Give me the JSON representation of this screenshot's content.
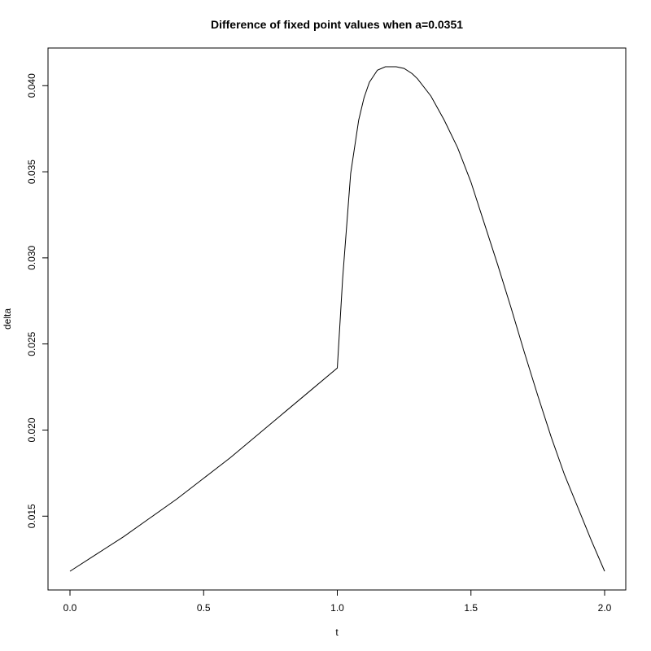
{
  "chart_data": {
    "type": "line",
    "title": "Difference of fixed point values when a=0.0351",
    "xlabel": "t",
    "ylabel": "delta",
    "xlim": [
      0,
      2
    ],
    "ylim": [
      0.0118,
      0.0411
    ],
    "x_ticks": [
      0.0,
      0.5,
      1.0,
      1.5,
      2.0
    ],
    "x_tick_labels": [
      "0.0",
      "0.5",
      "1.0",
      "1.5",
      "2.0"
    ],
    "y_ticks": [
      0.015,
      0.02,
      0.025,
      0.03,
      0.035,
      0.04
    ],
    "y_tick_labels": [
      "0.015",
      "0.020",
      "0.025",
      "0.030",
      "0.035",
      "0.040"
    ],
    "grid": false,
    "legend": "none",
    "line_color": "#000000",
    "series": [
      {
        "x": [
          0.0,
          0.1,
          0.2,
          0.3,
          0.4,
          0.5,
          0.6,
          0.7,
          0.8,
          0.9,
          1.0,
          1.02,
          1.05,
          1.08,
          1.1,
          1.12,
          1.15,
          1.18,
          1.2,
          1.22,
          1.25,
          1.28,
          1.3,
          1.35,
          1.4,
          1.45,
          1.5,
          1.55,
          1.6,
          1.65,
          1.7,
          1.75,
          1.8,
          1.85,
          1.9,
          1.95,
          2.0
        ],
        "y": [
          0.0118,
          0.0128,
          0.0138,
          0.0149,
          0.016,
          0.0172,
          0.0184,
          0.0197,
          0.021,
          0.0223,
          0.0236,
          0.0288,
          0.0349,
          0.038,
          0.0393,
          0.0402,
          0.0409,
          0.0411,
          0.0411,
          0.0411,
          0.041,
          0.0407,
          0.0404,
          0.0394,
          0.038,
          0.0364,
          0.0344,
          0.032,
          0.0296,
          0.0271,
          0.0245,
          0.022,
          0.0196,
          0.0174,
          0.0155,
          0.0136,
          0.0118
        ]
      }
    ]
  }
}
